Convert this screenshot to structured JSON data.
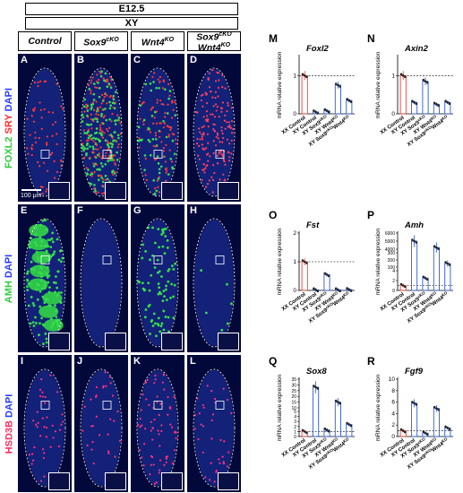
{
  "header": {
    "stage": "E12.5",
    "genotype": "XY"
  },
  "columns": [
    "Control",
    "Sox9",
    "Wnt4",
    "Sox9 Wnt4"
  ],
  "column_sup": [
    "",
    "cKO",
    "KO",
    ""
  ],
  "col4_line1": "Sox9",
  "col4_sup1": "cKO",
  "col4_line2": "Wnt4",
  "col4_sup2": "KO",
  "rows": [
    {
      "markers": [
        {
          "text": "FOXL2",
          "color": "#2ecc40"
        },
        {
          "text": "SRY",
          "color": "#ff3030"
        },
        {
          "text": "DAPI",
          "color": "#2a3cff"
        }
      ],
      "letters": [
        "A",
        "B",
        "C",
        "D"
      ]
    },
    {
      "markers": [
        {
          "text": "AMH",
          "color": "#2ecc40"
        },
        {
          "text": "DAPI",
          "color": "#2a3cff"
        }
      ],
      "letters": [
        "E",
        "F",
        "G",
        "H"
      ]
    },
    {
      "markers": [
        {
          "text": "HSD3B",
          "color": "#ff3060"
        },
        {
          "text": "DAPI",
          "color": "#2a3cff"
        }
      ],
      "letters": [
        "I",
        "J",
        "K",
        "L"
      ]
    }
  ],
  "scale_bar": "100 μm",
  "ylabel": "mRNA relative expression",
  "xcats": [
    {
      "base": "XX Control",
      "sup": "",
      "base2": "",
      "sup2": ""
    },
    {
      "base": "XY Control",
      "sup": "",
      "base2": "",
      "sup2": ""
    },
    {
      "base": "XY Sox9",
      "sup": "cKO",
      "base2": "",
      "sup2": ""
    },
    {
      "base": "XY Wnt4",
      "sup": "KO",
      "base2": "",
      "sup2": ""
    },
    {
      "base": "XY Sox9",
      "sup": "cKO",
      "base2": "Wnt4",
      "sup2": "KO"
    }
  ],
  "bar_colors": [
    "#e8413c",
    "#2f5bd6",
    "#2f5bd6",
    "#2f5bd6",
    "#2f5bd6"
  ],
  "chart_data": [
    {
      "letter": "M",
      "title": "Foxl2",
      "type": "bar",
      "ylim": [
        0,
        1.5
      ],
      "yticks": [
        "0",
        "1"
      ],
      "ytick_values": [
        0,
        1
      ],
      "values": [
        1.0,
        0.05,
        0.08,
        0.75,
        0.35
      ],
      "reference_line": 1
    },
    {
      "letter": "N",
      "title": "Axin2",
      "type": "bar",
      "ylim": [
        0,
        1.5
      ],
      "yticks": [
        "0",
        "1"
      ],
      "ytick_values": [
        0,
        1
      ],
      "values": [
        1.0,
        0.3,
        0.85,
        0.25,
        0.3
      ],
      "reference_line": 1
    },
    {
      "letter": "O",
      "title": "Fst",
      "type": "bar",
      "ylim": [
        0,
        2
      ],
      "yticks": [
        "0",
        "1",
        "2"
      ],
      "ytick_values": [
        0,
        1,
        2
      ],
      "values": [
        1.0,
        0.02,
        0.55,
        0.02,
        0.03
      ],
      "reference_line": 1
    },
    {
      "letter": "P",
      "title": "Amh",
      "type": "bar",
      "broken_axis": true,
      "yticks": [
        "0",
        "2",
        "4",
        "100",
        "200",
        "300",
        "4000",
        "5000",
        "6000"
      ],
      "values": [
        1.0,
        5000,
        2.5,
        4200,
        150
      ],
      "reference_line": 1
    },
    {
      "letter": "Q",
      "title": "Sox8",
      "type": "bar",
      "broken_axis": true,
      "yticks": [
        "0",
        "1",
        "2",
        "3",
        "4",
        "5",
        "10",
        "15",
        "20",
        "25",
        "30",
        "35"
      ],
      "values": [
        1.0,
        28,
        1.3,
        15,
        2.4
      ],
      "reference_line": 1
    },
    {
      "letter": "R",
      "title": "Fgf9",
      "type": "bar",
      "ylim": [
        0,
        10
      ],
      "yticks": [
        "0",
        "2",
        "4",
        "6",
        "8",
        "10"
      ],
      "ytick_values": [
        0,
        2,
        4,
        6,
        8,
        10
      ],
      "values": [
        1.0,
        5.8,
        0.6,
        4.9,
        1.5
      ],
      "reference_line": 1
    }
  ]
}
